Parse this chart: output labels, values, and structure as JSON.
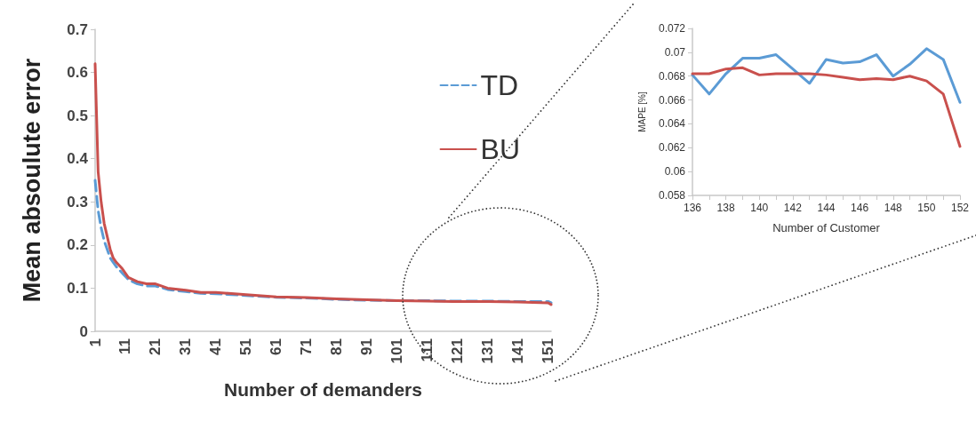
{
  "chart_data": [
    {
      "type": "line",
      "xlabel": "Number of demanders",
      "ylabel": "Mean absoulute error",
      "legend": "top right",
      "xlim": [
        1,
        152
      ],
      "xticks": [
        1,
        11,
        21,
        31,
        41,
        51,
        61,
        71,
        81,
        91,
        101,
        111,
        121,
        131,
        141,
        151
      ],
      "ylim": [
        0,
        0.7
      ],
      "yticks": [
        0,
        0.1,
        0.2,
        0.3,
        0.4,
        0.5,
        0.6,
        0.7
      ],
      "series": [
        {
          "name": "TD",
          "color": "#5b9bd5",
          "line_style": "dashed",
          "x": [
            1,
            2,
            3,
            4,
            5,
            6,
            7,
            8,
            10,
            12,
            15,
            18,
            21,
            25,
            31,
            36,
            41,
            51,
            61,
            71,
            81,
            91,
            101,
            111,
            121,
            131,
            141,
            151,
            152
          ],
          "values": [
            0.35,
            0.28,
            0.24,
            0.21,
            0.19,
            0.17,
            0.16,
            0.15,
            0.135,
            0.12,
            0.11,
            0.105,
            0.105,
            0.097,
            0.092,
            0.088,
            0.087,
            0.083,
            0.079,
            0.077,
            0.074,
            0.072,
            0.071,
            0.071,
            0.07,
            0.07,
            0.069,
            0.069,
            0.066
          ]
        },
        {
          "name": "BU",
          "color": "#c9504d",
          "line_style": "solid",
          "x": [
            1,
            2,
            3,
            4,
            5,
            6,
            7,
            8,
            10,
            12,
            15,
            18,
            21,
            25,
            31,
            36,
            41,
            51,
            61,
            71,
            81,
            91,
            101,
            111,
            121,
            131,
            141,
            151,
            152
          ],
          "values": [
            0.62,
            0.37,
            0.3,
            0.25,
            0.22,
            0.19,
            0.17,
            0.16,
            0.145,
            0.125,
            0.115,
            0.11,
            0.11,
            0.1,
            0.095,
            0.09,
            0.09,
            0.085,
            0.08,
            0.078,
            0.075,
            0.073,
            0.071,
            0.07,
            0.069,
            0.069,
            0.068,
            0.066,
            0.062
          ]
        }
      ]
    },
    {
      "type": "line",
      "xlabel": "Number of Customer",
      "ylabel": "MAPE [%]",
      "xlim": [
        136,
        152
      ],
      "xticks": [
        136,
        {
          "value": 137,
          "label": null
        },
        138,
        {
          "value": 139,
          "label": null
        },
        140,
        {
          "value": 141,
          "label": null
        },
        142,
        {
          "value": 143,
          "label": null
        },
        144,
        {
          "value": 145,
          "label": null
        },
        146,
        {
          "value": 147,
          "label": null
        },
        148,
        {
          "value": 149,
          "label": null
        },
        150,
        {
          "value": 151,
          "label": null
        },
        152
      ],
      "ylim": [
        0.058,
        0.072
      ],
      "yticks": [
        0.058,
        0.06,
        0.062,
        0.064,
        0.066,
        0.068,
        0.07,
        0.072
      ],
      "series": [
        {
          "color": "#5b9bd5",
          "x": [
            136,
            137,
            138,
            139,
            140,
            141,
            142,
            143,
            144,
            145,
            146,
            147,
            148,
            149,
            150,
            151,
            152
          ],
          "values": [
            0.0681,
            0.0665,
            0.0682,
            0.0695,
            0.0695,
            0.0698,
            0.0686,
            0.0674,
            0.0694,
            0.0691,
            0.0692,
            0.0698,
            0.068,
            0.069,
            0.0703,
            0.0694,
            0.0658
          ]
        },
        {
          "color": "#c9504d",
          "x": [
            136,
            137,
            138,
            139,
            140,
            141,
            142,
            143,
            144,
            145,
            146,
            147,
            148,
            149,
            150,
            151,
            152
          ],
          "values": [
            0.0682,
            0.0682,
            0.0686,
            0.0687,
            0.0681,
            0.0682,
            0.0682,
            0.0682,
            0.0681,
            0.0679,
            0.0677,
            0.0678,
            0.0677,
            0.068,
            0.0676,
            0.0665,
            0.0621
          ]
        }
      ]
    }
  ]
}
